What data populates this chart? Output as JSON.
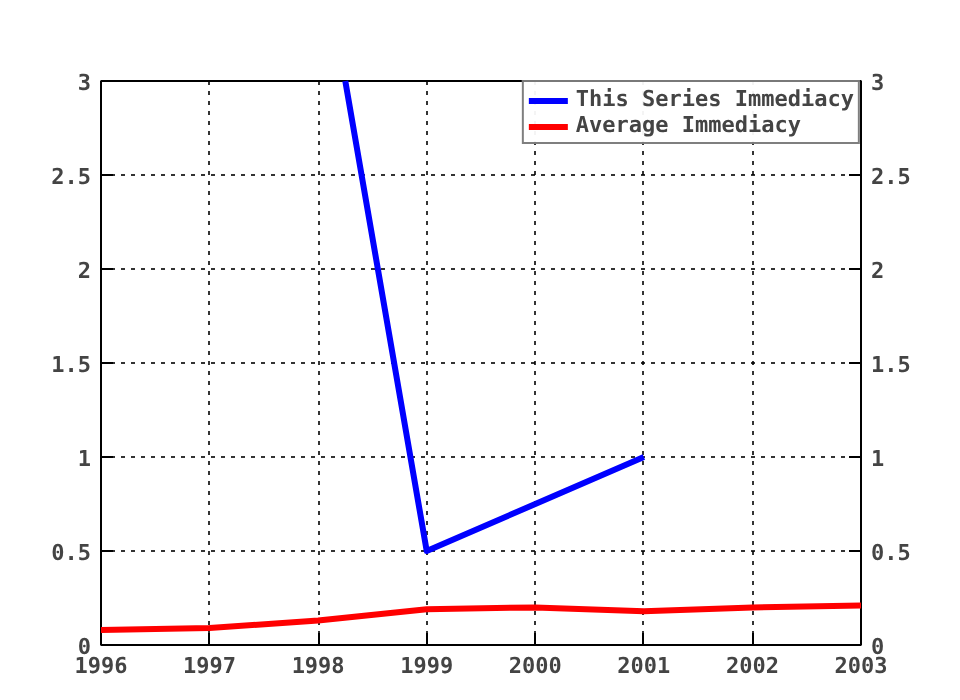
{
  "chart_data": {
    "type": "line",
    "x": [
      1996,
      1997,
      1998,
      1999,
      2000,
      2001,
      2002,
      2003
    ],
    "series": [
      {
        "name": "This Series Immediacy",
        "color": "#0000ff",
        "x": [
          1998.25,
          1999,
          2001
        ],
        "values": [
          3,
          0.5,
          1
        ]
      },
      {
        "name": "Average Immediacy",
        "color": "#ff0000",
        "values": [
          0.08,
          0.09,
          0.13,
          0.19,
          0.2,
          0.18,
          0.2,
          0.21
        ]
      }
    ],
    "xlim": [
      1996,
      2003
    ],
    "xticks": [
      1996,
      1997,
      1998,
      1999,
      2000,
      2001,
      2002,
      2003
    ],
    "ylim": [
      0,
      3
    ],
    "yticks": [
      0,
      {
        "value": 0.5,
        "label": "0.5"
      },
      1,
      {
        "value": 1.5,
        "label": "1.5"
      },
      2,
      {
        "value": 2.5,
        "label": "2.5"
      },
      3
    ],
    "y2lim": [
      0,
      3
    ],
    "y2ticks": [
      0,
      {
        "value": 0.5,
        "label": "0.5"
      },
      1,
      {
        "value": 1.5,
        "label": "1.5"
      },
      2,
      {
        "value": 2.5,
        "label": "2.5"
      },
      3
    ],
    "grid": true,
    "legend": "top right",
    "line_style": "solid"
  }
}
